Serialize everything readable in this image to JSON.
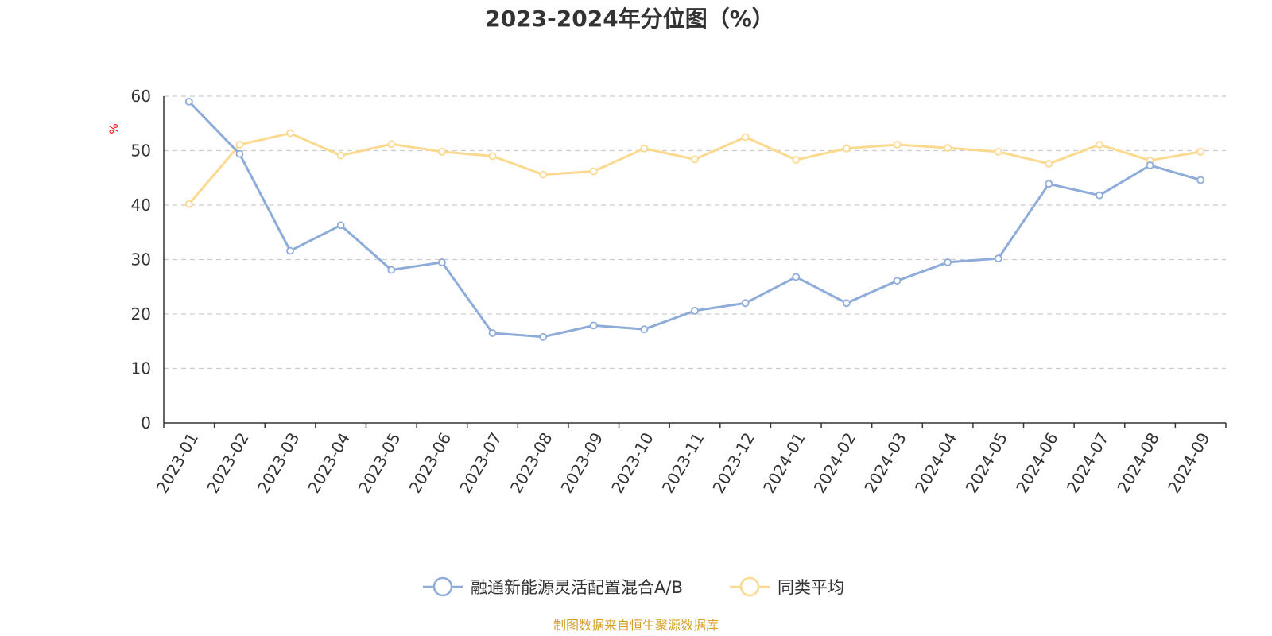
{
  "colors": {
    "series1": "#8eacd9",
    "series2": "#fbd98f",
    "axis": "#333333",
    "grid": "#cccccc",
    "unit": "#ff0000",
    "source": "#d4a028"
  },
  "source_text": "制图数据来自恒生聚源数据库",
  "chart_data": {
    "type": "line",
    "title": "2023-2024年分位图（%）",
    "ylabel": "%",
    "ylim": [
      0,
      60
    ],
    "yticks": [
      0,
      10,
      20,
      30,
      40,
      50,
      60
    ],
    "grid": true,
    "legend_position": "bottom-center",
    "categories": [
      "2023-01",
      "2023-02",
      "2023-03",
      "2023-04",
      "2023-05",
      "2023-06",
      "2023-07",
      "2023-08",
      "2023-09",
      "2023-10",
      "2023-11",
      "2023-12",
      "2024-01",
      "2024-02",
      "2024-03",
      "2024-04",
      "2024-05",
      "2024-06",
      "2024-07",
      "2024-08",
      "2024-09"
    ],
    "series": [
      {
        "name": "融通新能源灵活配置混合A/B",
        "values": [
          59.0,
          49.4,
          31.6,
          36.3,
          28.1,
          29.5,
          16.5,
          15.8,
          17.9,
          17.2,
          20.6,
          22.0,
          26.8,
          22.0,
          26.1,
          29.5,
          30.2,
          43.9,
          41.8,
          47.3,
          44.6
        ]
      },
      {
        "name": "同类平均",
        "values": [
          40.2,
          51.1,
          53.2,
          49.1,
          51.2,
          49.8,
          49.0,
          45.6,
          46.2,
          50.4,
          48.4,
          52.5,
          48.3,
          50.4,
          51.1,
          50.5,
          49.8,
          47.6,
          51.1,
          48.2,
          49.8
        ]
      }
    ]
  }
}
